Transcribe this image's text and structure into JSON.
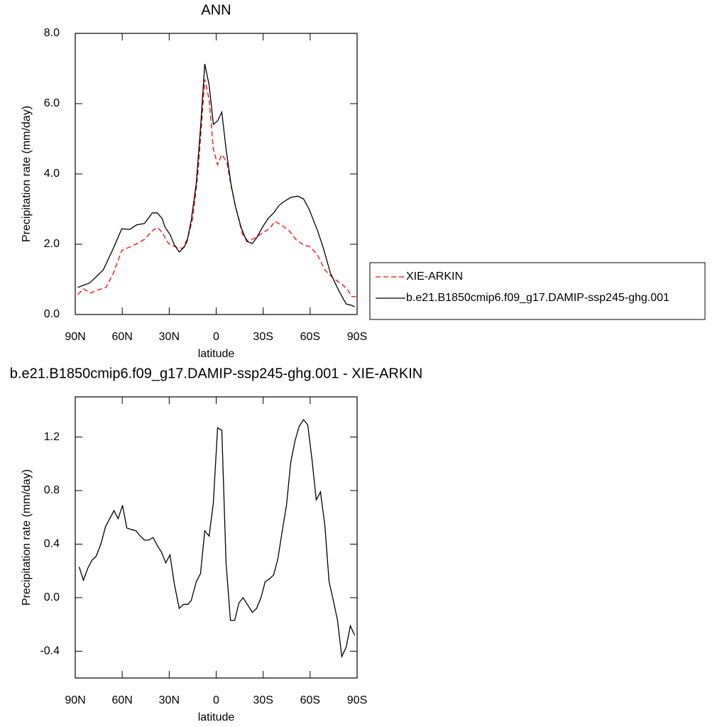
{
  "chart_data": [
    {
      "type": "line",
      "title": "ANN",
      "xlabel": "latitude",
      "ylabel": "Precipitation rate (mm/day)",
      "xlim": [
        90,
        -90
      ],
      "xticks": [
        {
          "value": 90,
          "label": "90N"
        },
        {
          "value": 60,
          "label": "60N"
        },
        {
          "value": 30,
          "label": "30N"
        },
        0,
        {
          "value": -30,
          "label": "30S"
        },
        {
          "value": -60,
          "label": "60S"
        },
        {
          "value": -90,
          "label": "90S"
        }
      ],
      "ylim": [
        0,
        8
      ],
      "yticks": [
        {
          "value": 0,
          "label": "0.0"
        },
        {
          "value": 2,
          "label": "2.0"
        },
        {
          "value": 4,
          "label": "4.0"
        },
        {
          "value": 6,
          "label": "6.0"
        },
        {
          "value": 8,
          "label": "8.0"
        }
      ],
      "legend": true,
      "series": [
        {
          "name": "XIE-ARKIN",
          "color": "#ff0000",
          "linestyle": "dashed",
          "x": [
            88.4,
            84.8,
            80.2,
            74.8,
            70.3,
            65.7,
            60.3,
            55.3,
            50.3,
            45.8,
            40.8,
            37.6,
            34.5,
            30.4,
            25.8,
            21.3,
            18.1,
            15.0,
            11.8,
            9.5,
            7.3,
            4.5,
            1.8,
            -0.9,
            -3.6,
            -6.8,
            -9.5,
            -12.7,
            -16.8,
            -20.4,
            -24.9,
            -29.5,
            -34.0,
            -37.6,
            -42.2,
            -46.7,
            -51.2,
            -55.8,
            -60.3,
            -64.8,
            -69.4,
            -74.8,
            -80.2,
            -83.9,
            -86.6,
            -89.3
          ],
          "values": [
            0.57,
            0.73,
            0.61,
            0.71,
            0.77,
            1.17,
            1.82,
            1.92,
            2.02,
            2.14,
            2.38,
            2.48,
            2.34,
            2.02,
            1.92,
            1.88,
            2.18,
            2.73,
            3.94,
            5.31,
            6.69,
            6.12,
            4.71,
            4.26,
            4.55,
            4.34,
            3.66,
            3.01,
            2.28,
            2.08,
            2.18,
            2.32,
            2.44,
            2.65,
            2.53,
            2.38,
            2.12,
            1.98,
            1.92,
            1.68,
            1.27,
            1.03,
            0.87,
            0.71,
            0.51,
            0.51
          ]
        },
        {
          "name": "b.e21.B1850cmip6.f09_g17.DAMIP-ssp245-ghg.001",
          "color": "#000000",
          "linestyle": "solid",
          "x": [
            88.4,
            80.7,
            72.1,
            65.7,
            60.3,
            55.3,
            50.8,
            45.8,
            40.8,
            37.6,
            34.5,
            32.6,
            29.5,
            26.7,
            23.6,
            20.4,
            18.6,
            15.9,
            12.7,
            10.0,
            7.3,
            4.5,
            1.8,
            -0.9,
            -3.6,
            -6.3,
            -9.5,
            -12.2,
            -15.9,
            -19.5,
            -23.1,
            -25.8,
            -29.5,
            -33.1,
            -36.7,
            -39.9,
            -43.1,
            -47.6,
            -52.1,
            -55.8,
            -59.4,
            -64.8,
            -68.5,
            -73.0,
            -78.4,
            -83.0,
            -86.6,
            -88.4
          ],
          "values": [
            0.77,
            0.9,
            1.27,
            1.88,
            2.44,
            2.42,
            2.55,
            2.59,
            2.89,
            2.89,
            2.73,
            2.48,
            2.28,
            1.98,
            1.78,
            1.92,
            2.08,
            2.69,
            3.74,
            5.31,
            7.13,
            6.53,
            5.41,
            5.51,
            5.76,
            4.71,
            3.7,
            3.09,
            2.48,
            2.08,
            2.02,
            2.18,
            2.48,
            2.73,
            2.89,
            3.09,
            3.21,
            3.33,
            3.37,
            3.29,
            2.99,
            2.38,
            1.88,
            1.17,
            0.67,
            0.3,
            0.26,
            0.22
          ]
        }
      ]
    },
    {
      "type": "line",
      "title": "b.e21.B1850cmip6.f09_g17.DAMIP-ssp245-ghg.001 - XIE-ARKIN",
      "xlabel": "latitude",
      "ylabel": "Precipitation rate (mm/day)",
      "xlim": [
        90,
        -90
      ],
      "xticks": [
        {
          "value": 90,
          "label": "90N"
        },
        {
          "value": 60,
          "label": "60N"
        },
        {
          "value": 30,
          "label": "30N"
        },
        0,
        {
          "value": -30,
          "label": "30S"
        },
        {
          "value": -60,
          "label": "60S"
        },
        {
          "value": -90,
          "label": "90S"
        }
      ],
      "ylim": [
        -0.6,
        1.5
      ],
      "yticks": [
        {
          "value": -0.4,
          "label": "-0.4"
        },
        {
          "value": 0,
          "label": "0.0"
        },
        0.4,
        0.8,
        1.2
      ],
      "legend": false,
      "series": [
        {
          "color": "#000000",
          "linestyle": "solid",
          "x": [
            87.5,
            84.8,
            82.0,
            79.3,
            76.6,
            73.4,
            70.7,
            68.0,
            65.3,
            62.6,
            59.8,
            57.1,
            54.4,
            51.2,
            48.5,
            45.8,
            43.1,
            40.3,
            37.6,
            34.9,
            32.2,
            29.5,
            26.7,
            23.6,
            20.9,
            18.1,
            15.9,
            12.7,
            10.0,
            7.3,
            4.5,
            1.8,
            -0.9,
            -3.6,
            -6.3,
            -9.1,
            -11.8,
            -14.5,
            -17.2,
            -20.4,
            -23.1,
            -25.8,
            -28.6,
            -31.3,
            -34.0,
            -36.7,
            -39.4,
            -42.2,
            -44.9,
            -47.6,
            -50.3,
            -53.0,
            -55.8,
            -58.5,
            -61.2,
            -63.9,
            -66.6,
            -69.4,
            -72.1,
            -74.8,
            -77.5,
            -80.2,
            -83.0,
            -85.7,
            -88.4
          ],
          "values": [
            0.23,
            0.13,
            0.22,
            0.28,
            0.31,
            0.41,
            0.53,
            0.59,
            0.65,
            0.59,
            0.69,
            0.52,
            0.51,
            0.5,
            0.46,
            0.43,
            0.43,
            0.45,
            0.39,
            0.34,
            0.26,
            0.32,
            0.1,
            -0.08,
            -0.05,
            -0.05,
            -0.02,
            0.12,
            0.18,
            0.5,
            0.46,
            0.71,
            1.27,
            1.25,
            0.26,
            -0.17,
            -0.17,
            -0.04,
            0.0,
            -0.06,
            -0.11,
            -0.08,
            0.0,
            0.12,
            0.14,
            0.17,
            0.29,
            0.5,
            0.69,
            1.01,
            1.17,
            1.28,
            1.33,
            1.29,
            1.03,
            0.73,
            0.79,
            0.54,
            0.12,
            -0.02,
            -0.17,
            -0.44,
            -0.37,
            -0.21,
            -0.28
          ]
        }
      ]
    }
  ]
}
